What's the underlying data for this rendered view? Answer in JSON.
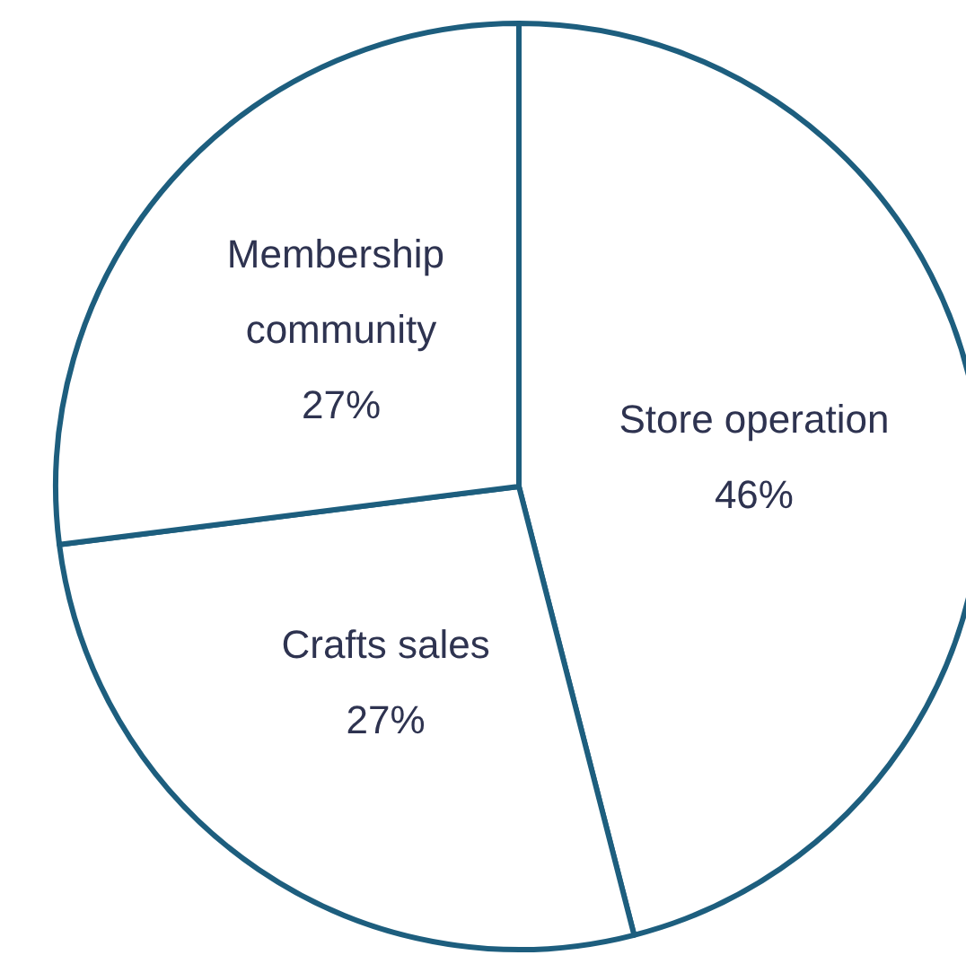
{
  "chart_data": {
    "type": "pie",
    "categories": [
      "Store operation",
      "Crafts sales",
      "Membership community"
    ],
    "values": [
      46,
      27,
      27
    ],
    "colors": [
      "#ffffff",
      "#ffffff",
      "#ffffff"
    ],
    "value_labels": [
      "46%",
      "27%",
      "27%"
    ],
    "legend": false
  }
}
